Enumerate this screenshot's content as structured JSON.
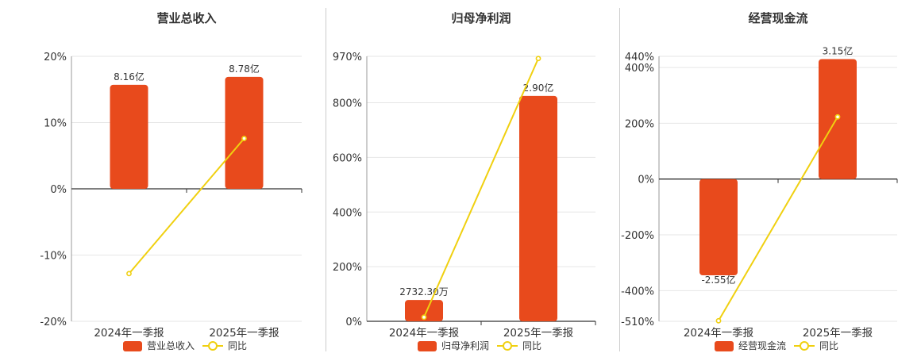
{
  "colors": {
    "bar": "#e84a1c",
    "line": "#f0d010",
    "axis": "#333333",
    "grid": "#e6e6e6"
  },
  "chart_data": [
    {
      "type": "bar",
      "title": "营业总收入",
      "categories": [
        "2024年一季报",
        "2025年一季报"
      ],
      "series": [
        {
          "name": "营业总收入",
          "type": "bar",
          "values": [
            15.7,
            16.9
          ],
          "labels": [
            "8.16亿",
            "8.78亿"
          ]
        },
        {
          "name": "同比",
          "type": "line",
          "values": [
            -12.8,
            7.6
          ]
        }
      ],
      "y_axis": {
        "ylim": [
          -20,
          20
        ],
        "ticks": [
          -20,
          -10,
          0,
          10,
          20
        ],
        "tick_labels": [
          "-20%",
          "-10%",
          "0%",
          "10%",
          "20%"
        ]
      },
      "grid": true,
      "legend": "bottom-center"
    },
    {
      "type": "bar",
      "title": "归母净利润",
      "categories": [
        "2024年一季报",
        "2025年一季报"
      ],
      "series": [
        {
          "name": "归母净利润",
          "type": "bar",
          "values": [
            78,
            825
          ],
          "labels": [
            "2732.30万",
            "2.90亿"
          ]
        },
        {
          "name": "同比",
          "type": "line",
          "values": [
            15,
            962
          ]
        }
      ],
      "y_axis": {
        "ylim": [
          0,
          970
        ],
        "ticks": [
          0,
          200,
          400,
          600,
          800,
          970
        ],
        "tick_labels": [
          "0%",
          "200%",
          "400%",
          "600%",
          "800%",
          "970%"
        ]
      },
      "grid": true,
      "legend": "bottom-center"
    },
    {
      "type": "bar",
      "title": "经营现金流",
      "categories": [
        "2024年一季报",
        "2025年一季报"
      ],
      "series": [
        {
          "name": "经营现金流",
          "type": "bar",
          "values": [
            -345,
            430
          ],
          "labels": [
            "-2.55亿",
            "3.15亿"
          ]
        },
        {
          "name": "同比",
          "type": "line",
          "values": [
            -508,
            223
          ]
        }
      ],
      "y_axis": {
        "ylim": [
          -510,
          440
        ],
        "ticks": [
          -510,
          -400,
          -200,
          0,
          200,
          400,
          440
        ],
        "tick_labels": [
          "-510%",
          "-400%",
          "-200%",
          "0%",
          "200%",
          "400%",
          "440%"
        ]
      },
      "grid": true,
      "legend": "bottom-center"
    }
  ]
}
